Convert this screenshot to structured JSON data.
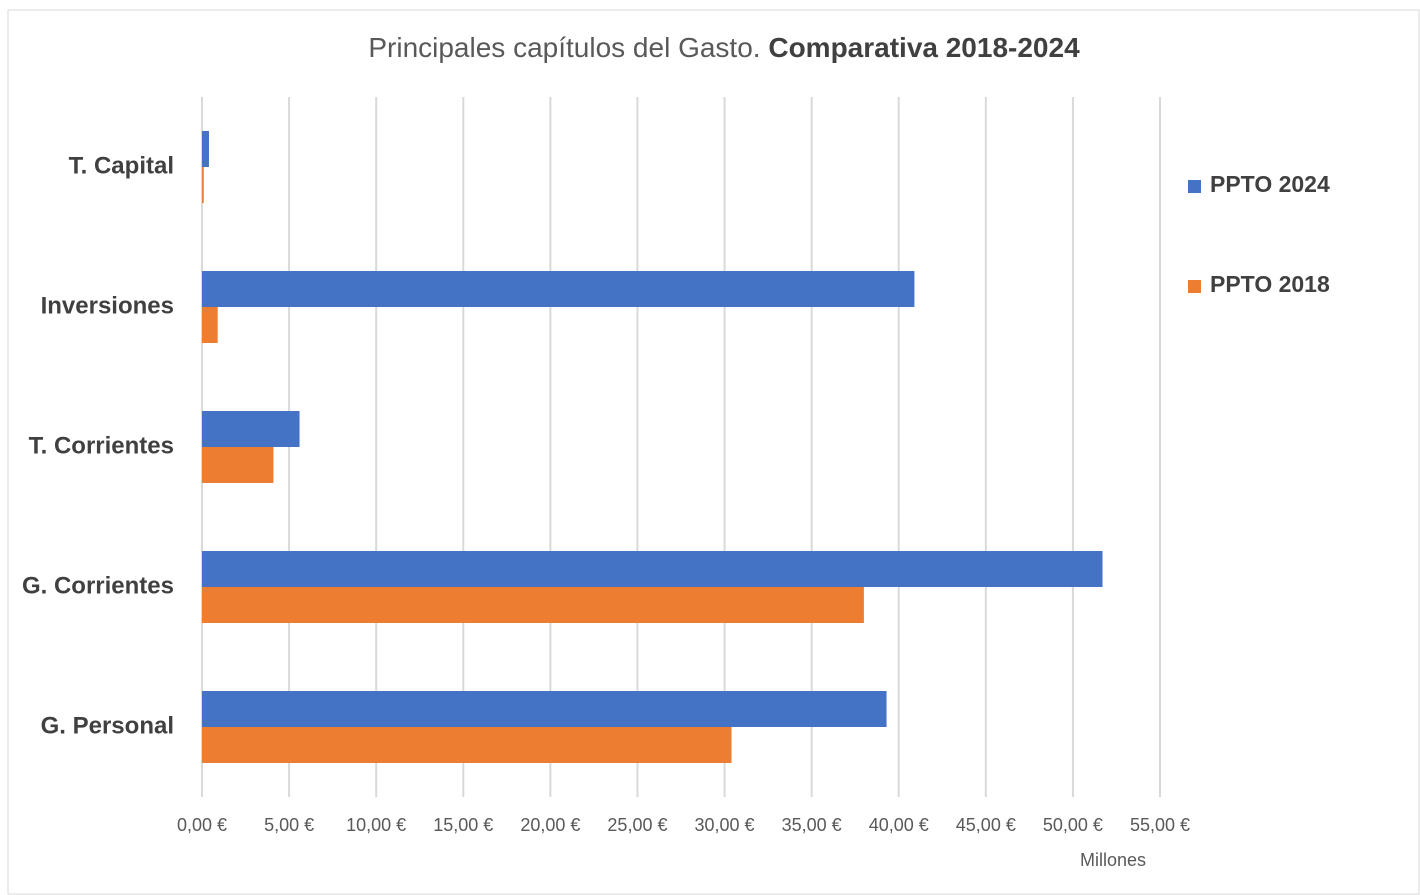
{
  "chart_data": {
    "type": "bar",
    "orientation": "horizontal",
    "title": [
      "Principales capítulos del Gasto.",
      "Comparativa 2018-2024"
    ],
    "xlabel": "Millones",
    "categories": [
      "T. Capital",
      "Inversiones",
      "T. Corrientes",
      "G. Corrientes",
      "G. Personal"
    ],
    "series": [
      {
        "name": "PPTO 2024",
        "color": "#4472c4",
        "values": [
          0.4,
          40.9,
          5.6,
          51.7,
          39.3
        ]
      },
      {
        "name": "PPTO 2018",
        "color": "#ed7d31",
        "values": [
          0.1,
          0.9,
          4.1,
          38.0,
          30.4
        ]
      }
    ],
    "xlim": [
      0,
      55
    ],
    "xticks": [
      {
        "value": 0,
        "label": "0,00 €"
      },
      {
        "value": 5,
        "label": "5,00 €"
      },
      {
        "value": 10,
        "label": "10,00 €"
      },
      {
        "value": 15,
        "label": "15,00 €"
      },
      {
        "value": 20,
        "label": "20,00 €"
      },
      {
        "value": 25,
        "label": "25,00 €"
      },
      {
        "value": 30,
        "label": "30,00 €"
      },
      {
        "value": 35,
        "label": "35,00 €"
      },
      {
        "value": 40,
        "label": "40,00 €"
      },
      {
        "value": 45,
        "label": "45,00 €"
      },
      {
        "value": 50,
        "label": "50,00 €"
      },
      {
        "value": 55,
        "label": "55,00 €"
      }
    ],
    "grid": true,
    "legend": "right"
  }
}
